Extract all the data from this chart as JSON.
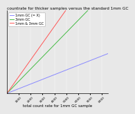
{
  "title": "countrate for thicker samples versus the standard 1mm GC",
  "xlabel": "total count rate for 1mm GC sample",
  "xlim": [
    0,
    8500
  ],
  "ylim": [
    0,
    8500
  ],
  "grid": true,
  "background_color": "#e8e8e8",
  "lines": [
    {
      "label": "1mm GC (= X)",
      "color": "#8888ff",
      "slope": 0.48,
      "intercept": 0,
      "linewidth": 0.7
    },
    {
      "label": "3mm GC",
      "color": "#44bb44",
      "slope": 1.25,
      "intercept": 0,
      "linewidth": 0.7
    },
    {
      "label": "1mm & 3mm GC",
      "color": "#ff5555",
      "slope": 1.72,
      "intercept": 0,
      "linewidth": 0.7
    }
  ],
  "x_ticks": [
    1000,
    2000,
    3000,
    4000,
    5000,
    6000,
    7000,
    8000
  ],
  "title_fontsize": 4.2,
  "label_fontsize": 4.0,
  "tick_fontsize": 3.2,
  "legend_fontsize": 3.5
}
